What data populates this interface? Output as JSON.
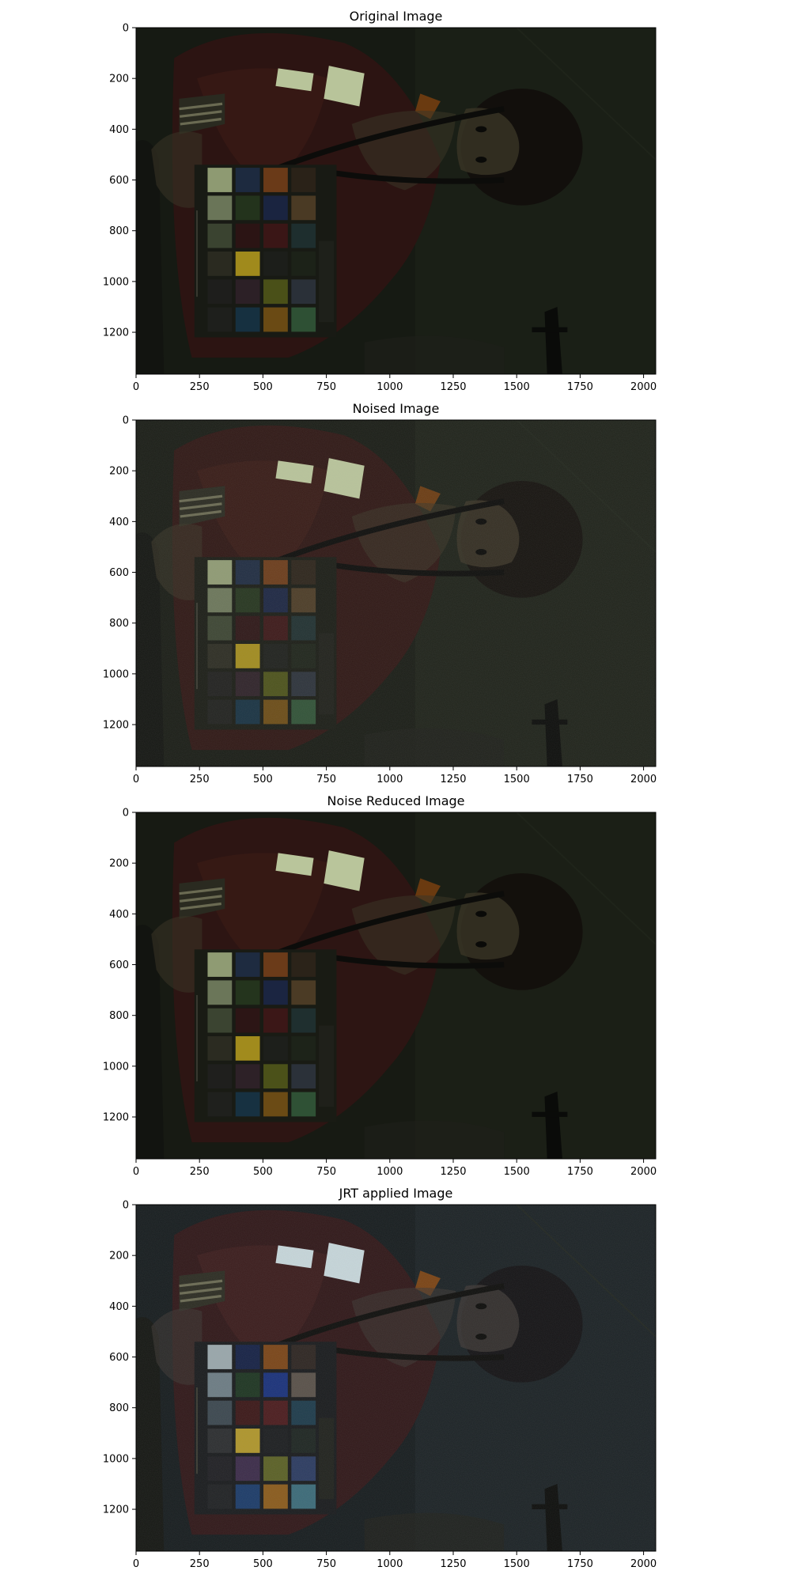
{
  "figure": {
    "panels": [
      {
        "title": "Original Image",
        "variant": "original"
      },
      {
        "title": "Noised Image",
        "variant": "noised"
      },
      {
        "title": "Noise Reduced Image",
        "variant": "reduced"
      },
      {
        "title": "JRT applied Image",
        "variant": "jrt"
      }
    ],
    "x_ticks": [
      "0",
      "250",
      "500",
      "750",
      "1000",
      "1250",
      "1500",
      "1750",
      "2000"
    ],
    "y_ticks": [
      "0",
      "200",
      "400",
      "600",
      "800",
      "1000",
      "1200"
    ],
    "image_width": 2048,
    "image_height": 1365
  }
}
